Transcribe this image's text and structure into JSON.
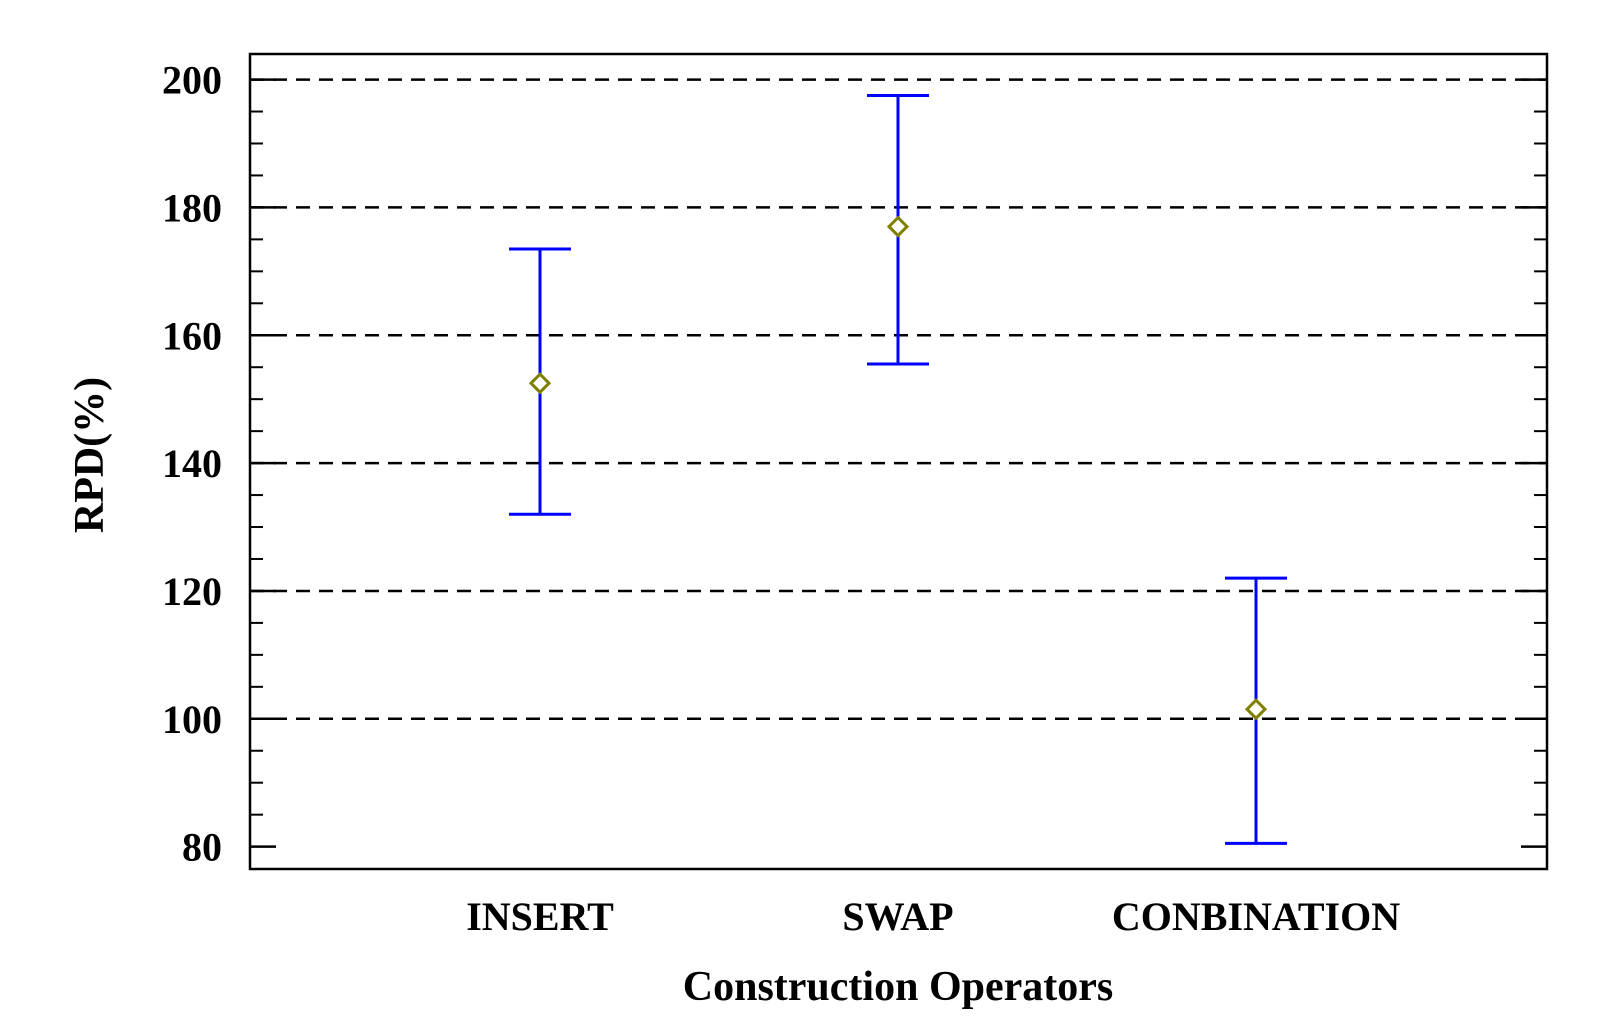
{
  "chart_data": {
    "type": "interval",
    "title": "",
    "xlabel": "Construction Operators",
    "ylabel": "RPD(%)",
    "categories": [
      "INSERT",
      "SWAP",
      "CONBINATION"
    ],
    "means": [
      152.5,
      177.0,
      101.5
    ],
    "lower": [
      132.0,
      155.5,
      80.5
    ],
    "upper": [
      173.5,
      197.5,
      122.0
    ],
    "ylim": [
      76.5,
      204
    ],
    "yticks": [
      80,
      100,
      120,
      140,
      160,
      180,
      200
    ],
    "grid": "horizontal dashed at major ticks",
    "colors": {
      "interval": "#0000ff",
      "marker": "#808000",
      "grid": "#000000"
    }
  }
}
